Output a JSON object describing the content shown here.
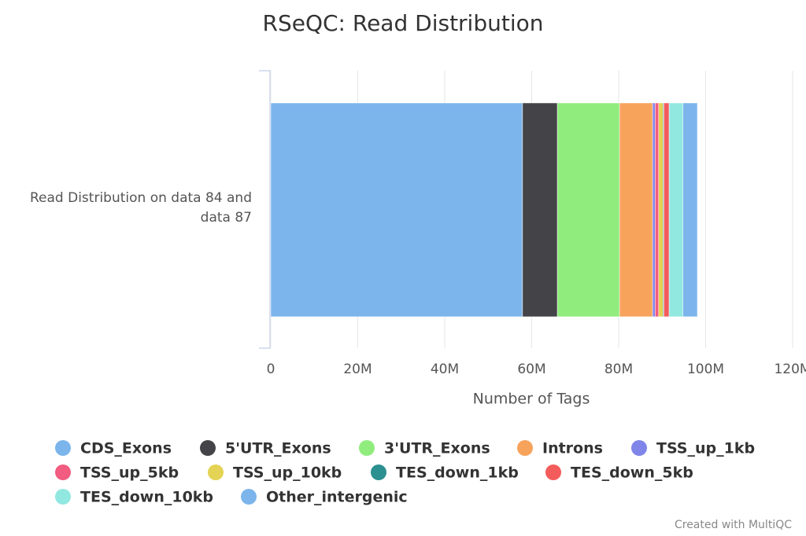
{
  "chart_data": {
    "type": "stacked_bar_horizontal",
    "title": "RSeQC: Read Distribution",
    "categories": [
      "Read Distribution on data 84 and data 87"
    ],
    "x_axis_label": "Number of Tags",
    "series": [
      {
        "name": "CDS_Exons",
        "color": "#7cb5ec",
        "values": [
          57900000
        ]
      },
      {
        "name": "5'UTR_Exons",
        "color": "#434348",
        "values": [
          8000000
        ]
      },
      {
        "name": "3'UTR_Exons",
        "color": "#90ed7d",
        "values": [
          14300000
        ]
      },
      {
        "name": "Introns",
        "color": "#f7a35c",
        "values": [
          7600000
        ]
      },
      {
        "name": "TSS_up_1kb",
        "color": "#8085e9",
        "values": [
          600000
        ]
      },
      {
        "name": "TSS_up_5kb",
        "color": "#f15c80",
        "values": [
          800000
        ]
      },
      {
        "name": "TSS_up_10kb",
        "color": "#e4d354",
        "values": [
          1000000
        ]
      },
      {
        "name": "TES_down_1kb",
        "color": "#2b908f",
        "values": [
          200000
        ]
      },
      {
        "name": "TES_down_5kb",
        "color": "#f45b5b",
        "values": [
          1200000
        ]
      },
      {
        "name": "TES_down_10kb",
        "color": "#91e8e1",
        "values": [
          3200000
        ]
      },
      {
        "name": "Other_intergenic",
        "color": "#7cb5ec",
        "values": [
          3300000
        ]
      }
    ],
    "xlim": [
      0,
      120000000
    ],
    "xticks": [
      0,
      {
        "value": 20000000,
        "label": "20M"
      },
      {
        "value": 40000000,
        "label": "40M"
      },
      {
        "value": 60000000,
        "label": "60M"
      },
      {
        "value": 80000000,
        "label": "80M"
      },
      {
        "value": 100000000,
        "label": "100M"
      },
      {
        "value": 120000000,
        "label": "120M"
      }
    ],
    "grid": true,
    "credit": "Created with MultiQC"
  }
}
